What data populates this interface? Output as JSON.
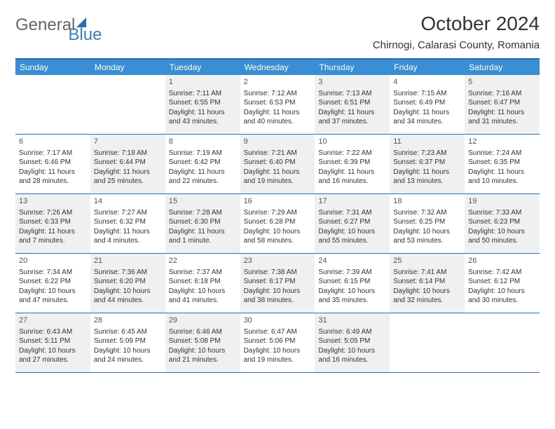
{
  "logo": {
    "text1": "General",
    "text2": "Blue"
  },
  "title": "October 2024",
  "location": "Chirnogi, Calarasi County, Romania",
  "day_headers": [
    "Sunday",
    "Monday",
    "Tuesday",
    "Wednesday",
    "Thursday",
    "Friday",
    "Saturday"
  ],
  "colors": {
    "header_bg": "#3a8fd4",
    "border": "#2c6cb0",
    "shade": "#eef0f1"
  },
  "weeks": [
    [
      {
        "day": "",
        "sunrise": "",
        "sunset": "",
        "daylight": "",
        "shaded": false
      },
      {
        "day": "",
        "sunrise": "",
        "sunset": "",
        "daylight": "",
        "shaded": false
      },
      {
        "day": "1",
        "sunrise": "Sunrise: 7:11 AM",
        "sunset": "Sunset: 6:55 PM",
        "daylight": "Daylight: 11 hours and 43 minutes.",
        "shaded": true
      },
      {
        "day": "2",
        "sunrise": "Sunrise: 7:12 AM",
        "sunset": "Sunset: 6:53 PM",
        "daylight": "Daylight: 11 hours and 40 minutes.",
        "shaded": false
      },
      {
        "day": "3",
        "sunrise": "Sunrise: 7:13 AM",
        "sunset": "Sunset: 6:51 PM",
        "daylight": "Daylight: 11 hours and 37 minutes.",
        "shaded": true
      },
      {
        "day": "4",
        "sunrise": "Sunrise: 7:15 AM",
        "sunset": "Sunset: 6:49 PM",
        "daylight": "Daylight: 11 hours and 34 minutes.",
        "shaded": false
      },
      {
        "day": "5",
        "sunrise": "Sunrise: 7:16 AM",
        "sunset": "Sunset: 6:47 PM",
        "daylight": "Daylight: 11 hours and 31 minutes.",
        "shaded": true
      }
    ],
    [
      {
        "day": "6",
        "sunrise": "Sunrise: 7:17 AM",
        "sunset": "Sunset: 6:46 PM",
        "daylight": "Daylight: 11 hours and 28 minutes.",
        "shaded": false
      },
      {
        "day": "7",
        "sunrise": "Sunrise: 7:18 AM",
        "sunset": "Sunset: 6:44 PM",
        "daylight": "Daylight: 11 hours and 25 minutes.",
        "shaded": true
      },
      {
        "day": "8",
        "sunrise": "Sunrise: 7:19 AM",
        "sunset": "Sunset: 6:42 PM",
        "daylight": "Daylight: 11 hours and 22 minutes.",
        "shaded": false
      },
      {
        "day": "9",
        "sunrise": "Sunrise: 7:21 AM",
        "sunset": "Sunset: 6:40 PM",
        "daylight": "Daylight: 11 hours and 19 minutes.",
        "shaded": true
      },
      {
        "day": "10",
        "sunrise": "Sunrise: 7:22 AM",
        "sunset": "Sunset: 6:39 PM",
        "daylight": "Daylight: 11 hours and 16 minutes.",
        "shaded": false
      },
      {
        "day": "11",
        "sunrise": "Sunrise: 7:23 AM",
        "sunset": "Sunset: 6:37 PM",
        "daylight": "Daylight: 11 hours and 13 minutes.",
        "shaded": true
      },
      {
        "day": "12",
        "sunrise": "Sunrise: 7:24 AM",
        "sunset": "Sunset: 6:35 PM",
        "daylight": "Daylight: 11 hours and 10 minutes.",
        "shaded": false
      }
    ],
    [
      {
        "day": "13",
        "sunrise": "Sunrise: 7:26 AM",
        "sunset": "Sunset: 6:33 PM",
        "daylight": "Daylight: 11 hours and 7 minutes.",
        "shaded": true
      },
      {
        "day": "14",
        "sunrise": "Sunrise: 7:27 AM",
        "sunset": "Sunset: 6:32 PM",
        "daylight": "Daylight: 11 hours and 4 minutes.",
        "shaded": false
      },
      {
        "day": "15",
        "sunrise": "Sunrise: 7:28 AM",
        "sunset": "Sunset: 6:30 PM",
        "daylight": "Daylight: 11 hours and 1 minute.",
        "shaded": true
      },
      {
        "day": "16",
        "sunrise": "Sunrise: 7:29 AM",
        "sunset": "Sunset: 6:28 PM",
        "daylight": "Daylight: 10 hours and 58 minutes.",
        "shaded": false
      },
      {
        "day": "17",
        "sunrise": "Sunrise: 7:31 AM",
        "sunset": "Sunset: 6:27 PM",
        "daylight": "Daylight: 10 hours and 55 minutes.",
        "shaded": true
      },
      {
        "day": "18",
        "sunrise": "Sunrise: 7:32 AM",
        "sunset": "Sunset: 6:25 PM",
        "daylight": "Daylight: 10 hours and 53 minutes.",
        "shaded": false
      },
      {
        "day": "19",
        "sunrise": "Sunrise: 7:33 AM",
        "sunset": "Sunset: 6:23 PM",
        "daylight": "Daylight: 10 hours and 50 minutes.",
        "shaded": true
      }
    ],
    [
      {
        "day": "20",
        "sunrise": "Sunrise: 7:34 AM",
        "sunset": "Sunset: 6:22 PM",
        "daylight": "Daylight: 10 hours and 47 minutes.",
        "shaded": false
      },
      {
        "day": "21",
        "sunrise": "Sunrise: 7:36 AM",
        "sunset": "Sunset: 6:20 PM",
        "daylight": "Daylight: 10 hours and 44 minutes.",
        "shaded": true
      },
      {
        "day": "22",
        "sunrise": "Sunrise: 7:37 AM",
        "sunset": "Sunset: 6:18 PM",
        "daylight": "Daylight: 10 hours and 41 minutes.",
        "shaded": false
      },
      {
        "day": "23",
        "sunrise": "Sunrise: 7:38 AM",
        "sunset": "Sunset: 6:17 PM",
        "daylight": "Daylight: 10 hours and 38 minutes.",
        "shaded": true
      },
      {
        "day": "24",
        "sunrise": "Sunrise: 7:39 AM",
        "sunset": "Sunset: 6:15 PM",
        "daylight": "Daylight: 10 hours and 35 minutes.",
        "shaded": false
      },
      {
        "day": "25",
        "sunrise": "Sunrise: 7:41 AM",
        "sunset": "Sunset: 6:14 PM",
        "daylight": "Daylight: 10 hours and 32 minutes.",
        "shaded": true
      },
      {
        "day": "26",
        "sunrise": "Sunrise: 7:42 AM",
        "sunset": "Sunset: 6:12 PM",
        "daylight": "Daylight: 10 hours and 30 minutes.",
        "shaded": false
      }
    ],
    [
      {
        "day": "27",
        "sunrise": "Sunrise: 6:43 AM",
        "sunset": "Sunset: 5:11 PM",
        "daylight": "Daylight: 10 hours and 27 minutes.",
        "shaded": true
      },
      {
        "day": "28",
        "sunrise": "Sunrise: 6:45 AM",
        "sunset": "Sunset: 5:09 PM",
        "daylight": "Daylight: 10 hours and 24 minutes.",
        "shaded": false
      },
      {
        "day": "29",
        "sunrise": "Sunrise: 6:46 AM",
        "sunset": "Sunset: 5:08 PM",
        "daylight": "Daylight: 10 hours and 21 minutes.",
        "shaded": true
      },
      {
        "day": "30",
        "sunrise": "Sunrise: 6:47 AM",
        "sunset": "Sunset: 5:06 PM",
        "daylight": "Daylight: 10 hours and 19 minutes.",
        "shaded": false
      },
      {
        "day": "31",
        "sunrise": "Sunrise: 6:49 AM",
        "sunset": "Sunset: 5:05 PM",
        "daylight": "Daylight: 10 hours and 16 minutes.",
        "shaded": true
      },
      {
        "day": "",
        "sunrise": "",
        "sunset": "",
        "daylight": "",
        "shaded": false
      },
      {
        "day": "",
        "sunrise": "",
        "sunset": "",
        "daylight": "",
        "shaded": false
      }
    ]
  ]
}
